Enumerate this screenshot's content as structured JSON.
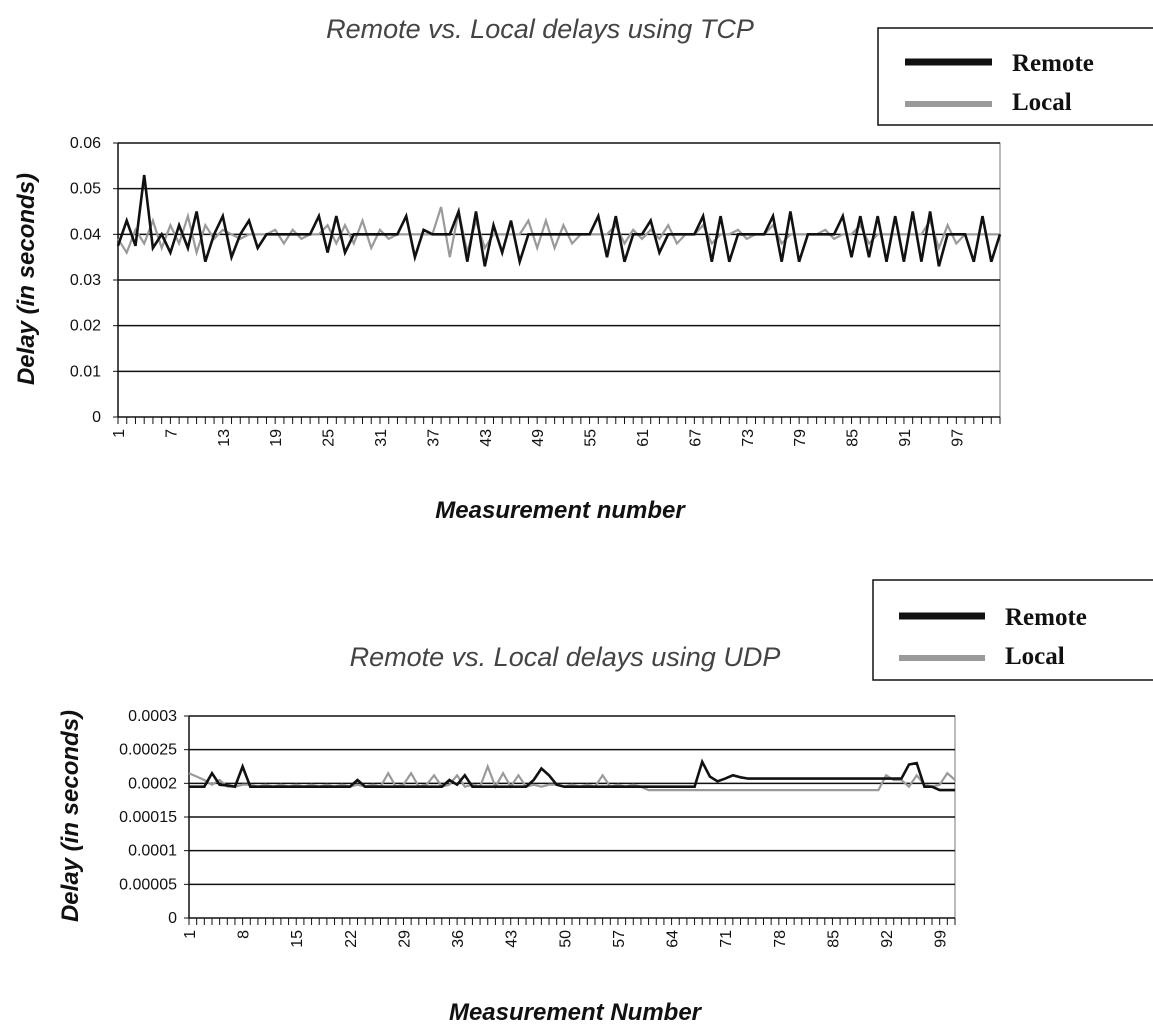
{
  "chart_data": [
    {
      "type": "line",
      "title": "Remote vs. Local delays using TCP",
      "xlabel": "Measurement number",
      "ylabel": "Delay (in seconds)",
      "ylim": [
        0,
        0.06
      ],
      "y_ticks": [
        "0",
        "0.01",
        "0.02",
        "0.03",
        "0.04",
        "0.05",
        "0.06"
      ],
      "x_ticks": [
        "1",
        "7",
        "13",
        "19",
        "25",
        "31",
        "37",
        "43",
        "49",
        "55",
        "61",
        "67",
        "73",
        "79",
        "85",
        "91",
        "97"
      ],
      "x_range": [
        1,
        102
      ],
      "grid": "horizontal",
      "legend_position": "top-right",
      "series": [
        {
          "name": "Remote",
          "color": "#111111",
          "values": [
            0.0375,
            0.043,
            0.0375,
            0.053,
            0.037,
            0.04,
            0.036,
            0.042,
            0.037,
            0.045,
            0.034,
            0.04,
            0.044,
            0.035,
            0.04,
            0.043,
            0.037,
            0.04,
            0.04,
            0.04,
            0.04,
            0.04,
            0.04,
            0.044,
            0.036,
            0.044,
            0.036,
            0.04,
            0.04,
            0.04,
            0.04,
            0.04,
            0.04,
            0.044,
            0.035,
            0.041,
            0.04,
            0.04,
            0.04,
            0.045,
            0.034,
            0.045,
            0.033,
            0.042,
            0.036,
            0.043,
            0.034,
            0.04,
            0.04,
            0.04,
            0.04,
            0.04,
            0.04,
            0.04,
            0.04,
            0.044,
            0.035,
            0.044,
            0.034,
            0.04,
            0.04,
            0.043,
            0.036,
            0.04,
            0.04,
            0.04,
            0.04,
            0.044,
            0.034,
            0.044,
            0.034,
            0.04,
            0.04,
            0.04,
            0.04,
            0.044,
            0.034,
            0.045,
            0.034,
            0.04,
            0.04,
            0.04,
            0.04,
            0.044,
            0.035,
            0.044,
            0.035,
            0.044,
            0.034,
            0.044,
            0.034,
            0.045,
            0.034,
            0.045,
            0.033,
            0.04,
            0.04,
            0.04,
            0.034,
            0.044,
            0.034,
            0.04
          ]
        },
        {
          "name": "Local",
          "color": "#9a9a9a",
          "values": [
            0.039,
            0.036,
            0.041,
            0.038,
            0.043,
            0.037,
            0.042,
            0.038,
            0.044,
            0.036,
            0.042,
            0.039,
            0.041,
            0.04,
            0.039,
            0.04,
            0.04,
            0.04,
            0.041,
            0.038,
            0.041,
            0.039,
            0.04,
            0.04,
            0.042,
            0.038,
            0.042,
            0.038,
            0.043,
            0.037,
            0.041,
            0.039,
            0.04,
            0.04,
            0.04,
            0.04,
            0.04,
            0.046,
            0.035,
            0.045,
            0.036,
            0.043,
            0.037,
            0.04,
            0.04,
            0.04,
            0.04,
            0.043,
            0.037,
            0.043,
            0.037,
            0.042,
            0.038,
            0.04,
            0.04,
            0.04,
            0.04,
            0.042,
            0.038,
            0.041,
            0.039,
            0.041,
            0.039,
            0.042,
            0.038,
            0.04,
            0.04,
            0.042,
            0.038,
            0.04,
            0.04,
            0.041,
            0.039,
            0.04,
            0.04,
            0.042,
            0.038,
            0.04,
            0.04,
            0.04,
            0.04,
            0.041,
            0.039,
            0.04,
            0.04,
            0.042,
            0.038,
            0.04,
            0.04,
            0.04,
            0.04,
            0.04,
            0.04,
            0.043,
            0.037,
            0.042,
            0.038,
            0.04,
            0.04,
            0.04,
            0.04,
            0.04
          ]
        }
      ]
    },
    {
      "type": "line",
      "title": "Remote vs. Local delays using UDP",
      "xlabel": "Measurement Number",
      "ylabel": "Delay (in seconds)",
      "ylim": [
        0,
        0.0003
      ],
      "y_ticks": [
        "0",
        "0.00005",
        "0.0001",
        "0.00015",
        "0.0002",
        "0.00025",
        "0.0003"
      ],
      "x_ticks": [
        "1",
        "8",
        "15",
        "22",
        "29",
        "36",
        "43",
        "50",
        "57",
        "64",
        "71",
        "78",
        "85",
        "92",
        "99"
      ],
      "x_range": [
        1,
        101
      ],
      "grid": "horizontal",
      "legend_position": "top-right",
      "series": [
        {
          "name": "Remote",
          "color": "#111111",
          "values": [
            0.000195,
            0.000195,
            0.000195,
            0.000215,
            0.000198,
            0.000197,
            0.000195,
            0.000225,
            0.000195,
            0.000195,
            0.000195,
            0.000195,
            0.000195,
            0.000195,
            0.000195,
            0.000195,
            0.000195,
            0.000195,
            0.000195,
            0.000195,
            0.000195,
            0.000195,
            0.000205,
            0.000195,
            0.000195,
            0.000195,
            0.000195,
            0.000195,
            0.000195,
            0.000195,
            0.000195,
            0.000195,
            0.000195,
            0.000195,
            0.000205,
            0.000198,
            0.000212,
            0.000195,
            0.000195,
            0.000195,
            0.000195,
            0.000195,
            0.000195,
            0.000195,
            0.000195,
            0.000205,
            0.000222,
            0.000212,
            0.000198,
            0.000195,
            0.000195,
            0.000195,
            0.000195,
            0.000195,
            0.000195,
            0.000195,
            0.000195,
            0.000195,
            0.000195,
            0.000195,
            0.000195,
            0.000195,
            0.000195,
            0.000195,
            0.000195,
            0.000195,
            0.000195,
            0.000232,
            0.00021,
            0.000203,
            0.000207,
            0.000212,
            0.000209,
            0.000207,
            0.000207,
            0.000207,
            0.000207,
            0.000207,
            0.000207,
            0.000207,
            0.000207,
            0.000207,
            0.000207,
            0.000207,
            0.000207,
            0.000207,
            0.000207,
            0.000207,
            0.000207,
            0.000207,
            0.000207,
            0.000207,
            0.000207,
            0.000207,
            0.000228,
            0.00023,
            0.000195,
            0.000195,
            0.00019,
            0.00019,
            0.00019
          ]
        },
        {
          "name": "Local",
          "color": "#9a9a9a",
          "values": [
            0.000215,
            0.00021,
            0.000205,
            0.000198,
            0.000205,
            0.000195,
            0.000195,
            0.000198,
            0.000198,
            0.000195,
            0.000198,
            0.000195,
            0.000198,
            0.000195,
            0.000198,
            0.000195,
            0.000198,
            0.000195,
            0.000198,
            0.000195,
            0.000198,
            0.000195,
            0.000198,
            0.000195,
            0.000198,
            0.000195,
            0.000215,
            0.000195,
            0.000198,
            0.000215,
            0.000195,
            0.000198,
            0.000212,
            0.000195,
            0.000198,
            0.000212,
            0.000195,
            0.000198,
            0.000195,
            0.000225,
            0.000195,
            0.000215,
            0.000195,
            0.000212,
            0.000195,
            0.000198,
            0.000195,
            0.000198,
            0.000198,
            0.000195,
            0.000198,
            0.000195,
            0.000198,
            0.000195,
            0.000212,
            0.000195,
            0.000198,
            0.000195,
            0.000198,
            0.000195,
            0.00019,
            0.00019,
            0.00019,
            0.00019,
            0.00019,
            0.00019,
            0.00019,
            0.00019,
            0.00019,
            0.00019,
            0.00019,
            0.00019,
            0.00019,
            0.00019,
            0.00019,
            0.00019,
            0.00019,
            0.00019,
            0.00019,
            0.00019,
            0.00019,
            0.00019,
            0.00019,
            0.00019,
            0.00019,
            0.00019,
            0.00019,
            0.00019,
            0.00019,
            0.00019,
            0.00019,
            0.000212,
            0.000205,
            0.000205,
            0.000195,
            0.000212,
            0.000198,
            0.000195,
            0.000198,
            0.000215,
            0.000205
          ]
        }
      ]
    }
  ]
}
